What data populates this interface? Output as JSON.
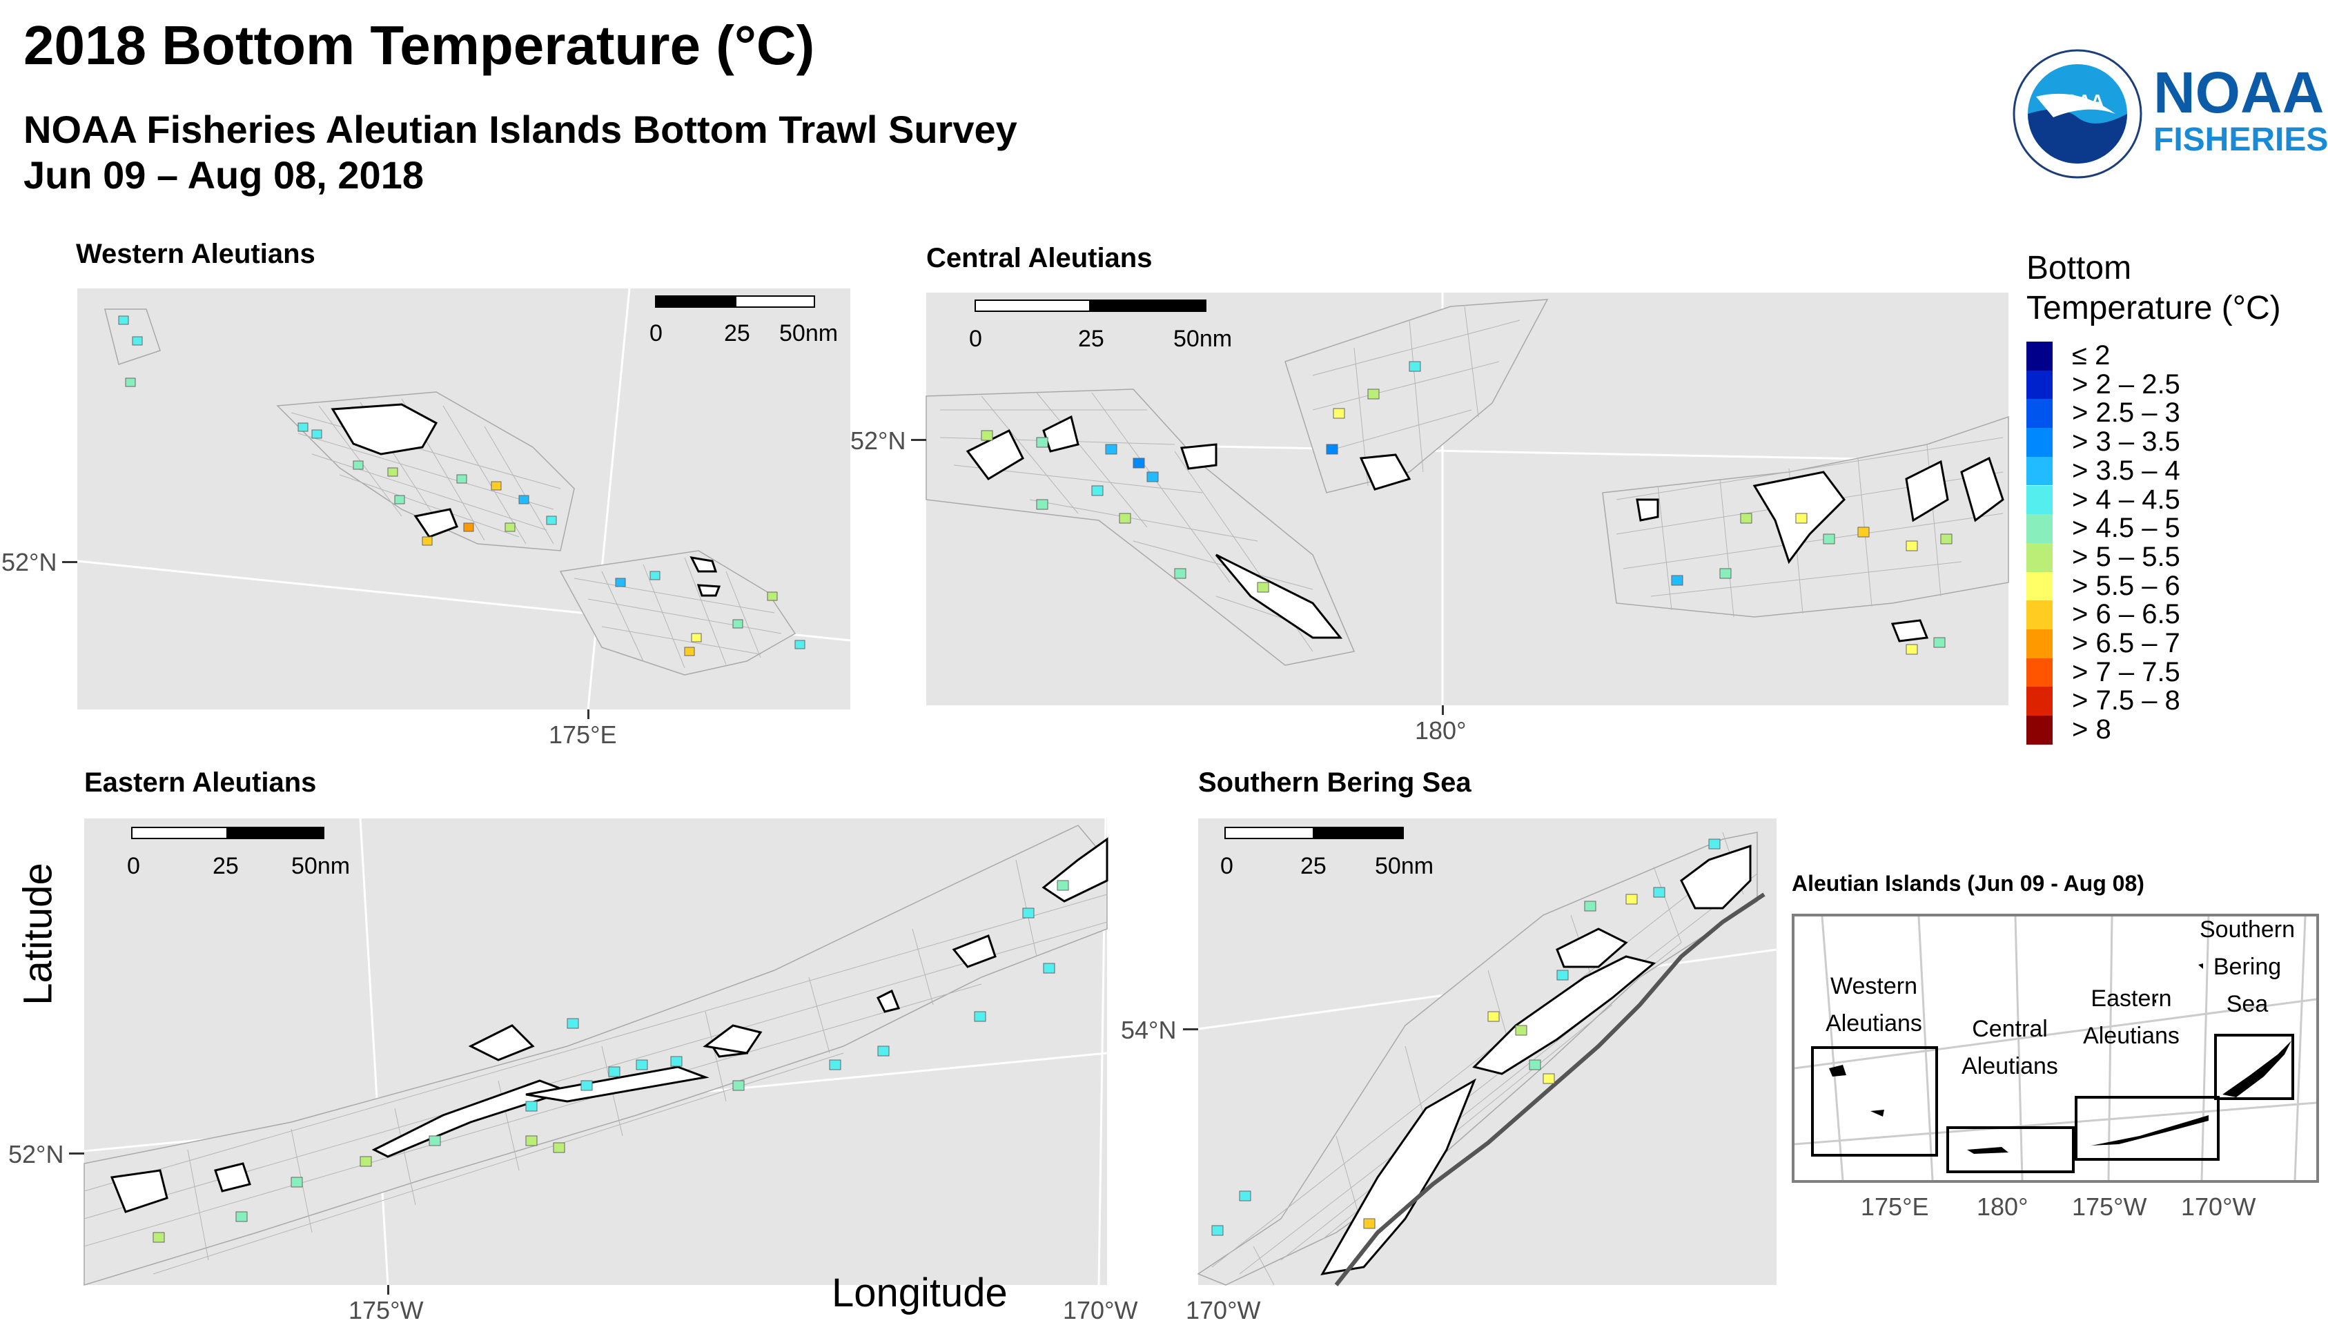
{
  "title": "2018 Bottom Temperature (°C)",
  "subtitle_line1": "NOAA Fisheries Aleutian Islands Bottom Trawl Survey",
  "subtitle_line2": "Jun 09 – Aug 08, 2018",
  "logo": {
    "emblem_text": "NOAA",
    "word1": "NOAA",
    "word2": "FISHERIES"
  },
  "axes": {
    "y_title": "Latitude",
    "x_title": "Longitude"
  },
  "panels": {
    "western": {
      "title": "Western Aleutians",
      "lat_label": "52°N",
      "lon_label": "175°E"
    },
    "central": {
      "title": "Central Aleutians",
      "lat_label": "52°N",
      "lon_label": "180°"
    },
    "eastern": {
      "title": "Eastern Aleutians",
      "lat_label": "52°N",
      "lon_label_1": "175°W",
      "lon_label_2": "170°W"
    },
    "southern": {
      "title": "Southern Bering Sea",
      "lat_label": "54°N",
      "lon_label": "170°W"
    }
  },
  "scalebar": {
    "l0": "0",
    "l1": "25",
    "l2": "50nm"
  },
  "legend": {
    "title_line1": "Bottom",
    "title_line2": "Temperature (°C)",
    "items": [
      {
        "label": "≤ 2",
        "color": "#00008b"
      },
      {
        "label": "> 2 – 2.5",
        "color": "#0022cc"
      },
      {
        "label": "> 2.5 – 3",
        "color": "#0055ee"
      },
      {
        "label": "> 3 – 3.5",
        "color": "#0088ff"
      },
      {
        "label": "> 3.5 – 4",
        "color": "#22bbff"
      },
      {
        "label": "> 4 – 4.5",
        "color": "#55eeee"
      },
      {
        "label": "> 4.5 – 5",
        "color": "#88eebb"
      },
      {
        "label": "> 5 – 5.5",
        "color": "#bbee77"
      },
      {
        "label": "> 5.5 – 6",
        "color": "#ffff66"
      },
      {
        "label": "> 6 – 6.5",
        "color": "#ffcc22"
      },
      {
        "label": "> 6.5 – 7",
        "color": "#ff9900"
      },
      {
        "label": "> 7 – 7.5",
        "color": "#ff5500"
      },
      {
        "label": "> 7.5 – 8",
        "color": "#dd2200"
      },
      {
        "label": "> 8",
        "color": "#8b0000"
      }
    ]
  },
  "inset": {
    "title": "Aleutian Islands (Jun 09 - Aug 08)",
    "western_1": "Western",
    "western_2": "Aleutians",
    "central_1": "Central",
    "central_2": "Aleutians",
    "eastern_1": "Eastern",
    "eastern_2": "Aleutians",
    "southern_1": "Southern",
    "southern_2": "Bering",
    "southern_3": "Sea",
    "lon_1": "175°E",
    "lon_2": "180°",
    "lon_3": "175°W",
    "lon_4": "170°W"
  },
  "colors": {
    "panel_bg": "#e5e5e5",
    "land": "#ffffff",
    "grid": "#9e9e9e",
    "noaa_blue": "#0b5ba8"
  }
}
